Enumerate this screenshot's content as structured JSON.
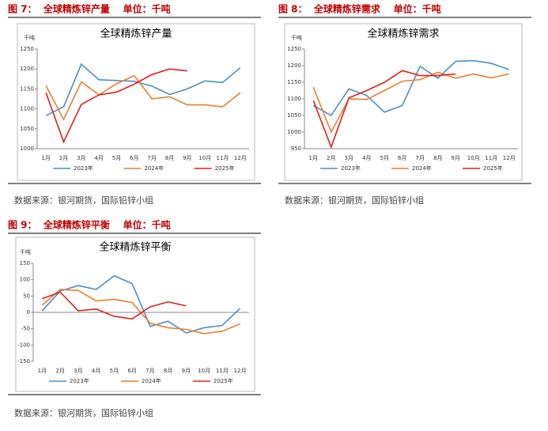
{
  "chart_data": [
    {
      "type": "line",
      "caption": "图 7：  全球精炼锌产量    单位：千吨",
      "title": "全球精炼锌产量",
      "ylabel": "千吨",
      "categories": [
        "1月",
        "2月",
        "3月",
        "4月",
        "5月",
        "6月",
        "7月",
        "8月",
        "9月",
        "10月",
        "11月",
        "12月"
      ],
      "series": [
        {
          "name": "2023年",
          "color": "#4e8fc7",
          "values": [
            1083,
            1105,
            1212,
            1173,
            1171,
            1169,
            1157,
            1136,
            1150,
            1170,
            1166,
            1203
          ]
        },
        {
          "name": "2024年",
          "color": "#ed7d31",
          "values": [
            1158,
            1073,
            1168,
            1135,
            1163,
            1183,
            1125,
            1130,
            1110,
            1110,
            1105,
            1140
          ]
        },
        {
          "name": "2025年",
          "color": "#e0201b",
          "values": [
            1140,
            1017,
            1111,
            1135,
            1142,
            1162,
            1186,
            1200,
            1195,
            null,
            null,
            null
          ]
        }
      ],
      "ylim": [
        1000,
        1250
      ],
      "yticks": [
        1000,
        1050,
        1100,
        1150,
        1200,
        1250
      ],
      "source": "数据来源：银河期货，国际铅锌小组"
    },
    {
      "type": "line",
      "caption": "图 8：  全球精炼锌需求    单位：千吨",
      "title": "全球精炼锌需求",
      "ylabel": "千吨",
      "categories": [
        "1月",
        "2月",
        "3月",
        "4月",
        "5月",
        "6月",
        "7月",
        "8月",
        "9月",
        "10月",
        "11月",
        "12月"
      ],
      "series": [
        {
          "name": "2023年",
          "color": "#4e8fc7",
          "values": [
            1080,
            1050,
            1130,
            1110,
            1060,
            1080,
            1198,
            1162,
            1213,
            1215,
            1207,
            1188
          ]
        },
        {
          "name": "2024年",
          "color": "#ed7d31",
          "values": [
            1135,
            1000,
            1100,
            1098,
            1125,
            1153,
            1158,
            1180,
            1162,
            1175,
            1163,
            1175
          ]
        },
        {
          "name": "2025年",
          "color": "#e0201b",
          "values": [
            1095,
            955,
            1103,
            1125,
            1150,
            1185,
            1170,
            1170,
            1175,
            null,
            null,
            null
          ]
        }
      ],
      "ylim": [
        950,
        1250
      ],
      "yticks": [
        950,
        1000,
        1050,
        1100,
        1150,
        1200,
        1250
      ],
      "source": "数据来源：银河期货，国际铅锌小组"
    },
    {
      "type": "line",
      "caption": "图 9：  全球精炼锌平衡    单位：千吨",
      "title": "全球精炼锌平衡",
      "ylabel": "千吨",
      "categories": [
        "1月",
        "2月",
        "3月",
        "4月",
        "5月",
        "6月",
        "7月",
        "8月",
        "9月",
        "10月",
        "11月",
        "12月"
      ],
      "series": [
        {
          "name": "2023年",
          "color": "#4e8fc7",
          "values": [
            5,
            65,
            82,
            70,
            112,
            88,
            -43,
            -27,
            -63,
            -47,
            -40,
            12
          ]
        },
        {
          "name": "2024年",
          "color": "#ed7d31",
          "values": [
            22,
            70,
            67,
            35,
            40,
            30,
            -33,
            -47,
            -52,
            -65,
            -58,
            -35
          ]
        },
        {
          "name": "2025年",
          "color": "#e0201b",
          "values": [
            42,
            62,
            5,
            10,
            -12,
            -20,
            17,
            32,
            20,
            null,
            null,
            null
          ]
        }
      ],
      "ylim": [
        -150,
        150
      ],
      "yticks": [
        -150,
        -100,
        -50,
        0,
        50,
        100,
        150
      ],
      "source": "数据来源：银河期货，国际铅锌小组"
    }
  ]
}
